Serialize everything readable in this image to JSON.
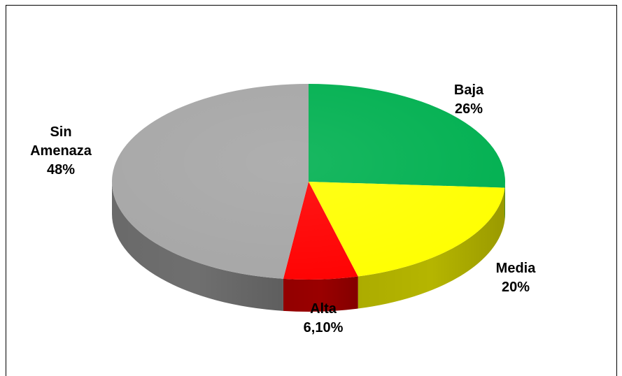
{
  "chart_data": {
    "type": "pie",
    "title": "",
    "categories": [
      "Baja",
      "Media",
      "Alta",
      "Sin Amenaza"
    ],
    "values": [
      26,
      20,
      6.1,
      48
    ],
    "labels": [
      {
        "name": "Baja",
        "pct": "26%"
      },
      {
        "name": "Media",
        "pct": "20%"
      },
      {
        "name": "Alta",
        "pct": "6,10%"
      },
      {
        "name": "Sin Amenaza",
        "pct": "48%"
      }
    ],
    "colors": [
      "#00b050",
      "#ffff00",
      "#ff0000",
      "#a6a6a6"
    ],
    "side_colors": [
      "#007a37",
      "#b5b500",
      "#9a0000",
      "#6f6f6f"
    ],
    "style": "3d",
    "legend": "none"
  }
}
